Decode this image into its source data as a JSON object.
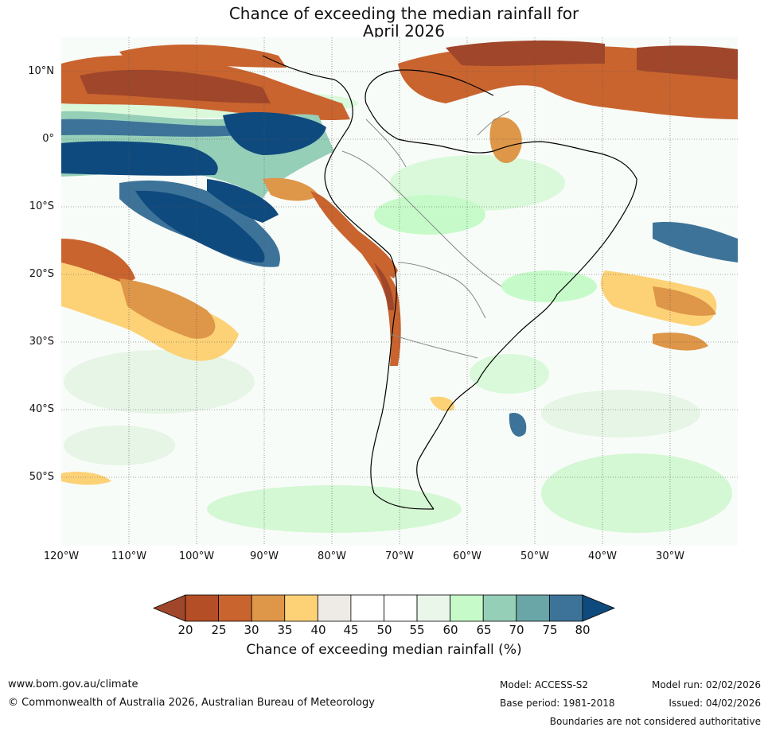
{
  "title": {
    "line1": "Chance of exceeding the median rainfall for",
    "line2": "April 2026"
  },
  "map": {
    "lat_labels": [
      "10°N",
      "0°",
      "10°S",
      "20°S",
      "30°S",
      "40°S",
      "50°S"
    ],
    "lon_labels": [
      "120°W",
      "110°W",
      "100°W",
      "90°W",
      "80°W",
      "70°W",
      "60°W",
      "50°W",
      "40°W",
      "30°W"
    ]
  },
  "colorbar": {
    "ticks": [
      "20",
      "25",
      "30",
      "35",
      "40",
      "45",
      "50",
      "55",
      "60",
      "65",
      "70",
      "75",
      "80"
    ],
    "colors": [
      "#a0462a",
      "#b44e27",
      "#c9642f",
      "#de9649",
      "#fdd277",
      "#eeeae6",
      "#ffffff",
      "#ffffff",
      "#eaf6ea",
      "#c6fbc9",
      "#96cfb8",
      "#6aa6a8",
      "#3d7399",
      "#0f4a7e"
    ],
    "label": "Chance of exceeding median rainfall (%)"
  },
  "footer": {
    "website": "www.bom.gov.au/climate",
    "copyright": "© Commonwealth of Australia 2026, Australian Bureau of Meteorology",
    "model": "Model: ACCESS-S2",
    "base_period": "Base period: 1981-2018",
    "model_run": "Model run: 02/02/2026",
    "issued": "Issued: 04/02/2026",
    "disclaimer": "Boundaries are not considered authoritative"
  }
}
